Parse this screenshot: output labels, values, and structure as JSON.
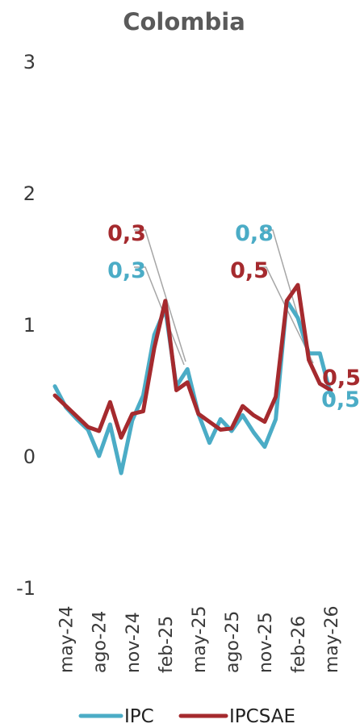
{
  "chart_data": {
    "type": "line",
    "title": "Colombia",
    "xlabel": "",
    "ylabel": "",
    "ylim": [
      -1,
      3
    ],
    "yticks": [
      "-1",
      "0",
      "1",
      "2",
      "3"
    ],
    "x": [
      "abr-24",
      "may-24",
      "jun-24",
      "jul-24",
      "ago-24",
      "sep-24",
      "oct-24",
      "nov-24",
      "dic-24",
      "ene-25",
      "feb-25",
      "mar-25",
      "abr-25",
      "may-25",
      "jun-25",
      "jul-25",
      "ago-25",
      "sep-25",
      "oct-25",
      "nov-25",
      "dic-25",
      "ene-26",
      "feb-26",
      "mar-26",
      "abr-26",
      "may-26"
    ],
    "xtick_labels": [
      "may-24",
      "ago-24",
      "nov-24",
      "feb-25",
      "may-25",
      "ago-25",
      "nov-25",
      "feb-26",
      "may-26"
    ],
    "grid": false,
    "legend_position": "bottom",
    "series": [
      {
        "name": "IPC",
        "color": "#4bacc6",
        "values": [
          0.53,
          0.37,
          0.28,
          0.2,
          0.0,
          0.24,
          -0.13,
          0.27,
          0.46,
          0.92,
          1.12,
          0.53,
          0.66,
          0.32,
          0.1,
          0.28,
          0.19,
          0.31,
          0.18,
          0.07,
          0.28,
          1.18,
          1.05,
          0.78,
          0.78,
          0.46
        ]
      },
      {
        "name": "IPCSAE",
        "color": "#a52a2e",
        "values": [
          0.46,
          0.38,
          0.3,
          0.22,
          0.19,
          0.41,
          0.14,
          0.32,
          0.34,
          0.82,
          1.18,
          0.5,
          0.56,
          0.32,
          0.26,
          0.2,
          0.21,
          0.38,
          0.31,
          0.26,
          0.45,
          1.18,
          1.3,
          0.73,
          0.55,
          0.5
        ]
      }
    ],
    "annotations": [
      {
        "text": "0,3",
        "series": "IPCSAE",
        "color": "#a52a2e"
      },
      {
        "text": "0,3",
        "series": "IPC",
        "color": "#4bacc6"
      },
      {
        "text": "0,8",
        "series": "IPC",
        "color": "#4bacc6"
      },
      {
        "text": "0,5",
        "series": "IPCSAE",
        "color": "#a52a2e"
      },
      {
        "text": "0,5",
        "series": "IPCSAE",
        "color": "#a52a2e"
      },
      {
        "text": "0,5",
        "series": "IPC",
        "color": "#4bacc6"
      }
    ]
  }
}
